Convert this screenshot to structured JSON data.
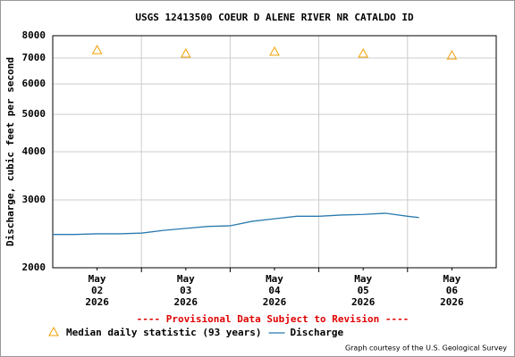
{
  "chart_data": {
    "type": "line",
    "title": "USGS 12413500 COEUR D ALENE RIVER NR CATALDO ID",
    "ylabel": "Discharge, cubic feet per second",
    "footnote": "---- Provisional Data Subject to Revision ----",
    "credit": "Graph courtesy of the U.S. Geological Survey",
    "log_y": true,
    "grid": true,
    "ylim": [
      2000,
      8000
    ],
    "yticks": [
      2000,
      3000,
      4000,
      5000,
      6000,
      7000,
      8000
    ],
    "xlim": [
      2,
      7
    ],
    "xticks": [
      {
        "value": 2.5,
        "label": [
          "May",
          "02",
          "2026"
        ]
      },
      {
        "value": 3.5,
        "label": [
          "May",
          "03",
          "2026"
        ]
      },
      {
        "value": 4.5,
        "label": [
          "May",
          "04",
          "2026"
        ]
      },
      {
        "value": 5.5,
        "label": [
          "May",
          "05",
          "2026"
        ]
      },
      {
        "value": 6.5,
        "label": [
          "May",
          "06",
          "2026"
        ]
      }
    ],
    "xgrid": [
      3,
      4,
      5,
      6
    ],
    "series": [
      {
        "name": "Median daily statistic (93 years)",
        "color": "#f0a000",
        "marker": "triangle",
        "x": [
          2.5,
          3.5,
          4.5,
          5.5,
          6.5
        ],
        "values": [
          7380,
          7230,
          7310,
          7230,
          7150
        ]
      },
      {
        "name": "Discharge",
        "color": "#2a7ab0",
        "x": [
          2.0,
          2.25,
          2.5,
          2.75,
          3.0,
          3.25,
          3.5,
          3.75,
          4.0,
          4.25,
          4.5,
          4.75,
          5.0,
          5.25,
          5.5,
          5.75,
          6.0,
          6.13
        ],
        "values": [
          2440,
          2440,
          2450,
          2450,
          2460,
          2500,
          2530,
          2560,
          2570,
          2640,
          2680,
          2720,
          2720,
          2740,
          2750,
          2770,
          2720,
          2700
        ]
      }
    ]
  }
}
